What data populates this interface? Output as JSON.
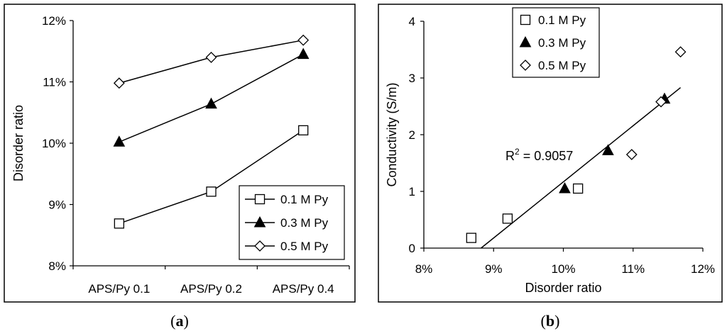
{
  "chart_data": [
    {
      "type": "line",
      "panel_label": "a",
      "ylabel": "Disorder ratio",
      "xlabel": "",
      "categories": [
        "APS/Py 0.1",
        "APS/Py 0.2",
        "APS/Py 0.4"
      ],
      "ylim": [
        8,
        12
      ],
      "yticks": [
        "8%",
        "9%",
        "10%",
        "11%",
        "12%"
      ],
      "legend_position": "bottom-right",
      "grid": false,
      "series": [
        {
          "name": "0.1 M Py",
          "marker": "square-open",
          "values": [
            8.69,
            9.21,
            10.21
          ]
        },
        {
          "name": "0.3 M Py",
          "marker": "triangle-filled",
          "values": [
            10.02,
            10.64,
            11.45
          ]
        },
        {
          "name": "0.5 M Py",
          "marker": "diamond-open",
          "values": [
            10.98,
            11.4,
            11.68
          ]
        }
      ]
    },
    {
      "type": "scatter",
      "panel_label": "b",
      "xlabel": "Disorder ratio",
      "ylabel": "Conductivity (S/m)",
      "xlim": [
        8,
        12
      ],
      "ylim": [
        0,
        4
      ],
      "xticks": [
        "8%",
        "9%",
        "10%",
        "11%",
        "12%"
      ],
      "yticks": [
        "0",
        "1",
        "2",
        "3",
        "4"
      ],
      "legend_position": "top-left",
      "grid": false,
      "annotation": {
        "prefix": "R",
        "superscript": "2",
        "suffix": " = 0.9057"
      },
      "trendline": {
        "x": [
          8.82,
          11.68
        ],
        "y": [
          0,
          2.83
        ]
      },
      "series": [
        {
          "name": "0.1 M Py",
          "marker": "square-open",
          "points": [
            [
              8.68,
              0.18
            ],
            [
              9.2,
              0.52
            ],
            [
              10.21,
              1.05
            ]
          ]
        },
        {
          "name": "0.3 M Py",
          "marker": "triangle-filled",
          "points": [
            [
              10.02,
              1.05
            ],
            [
              10.64,
              1.72
            ],
            [
              11.45,
              2.63
            ]
          ]
        },
        {
          "name": "0.5 M Py",
          "marker": "diamond-open",
          "points": [
            [
              10.98,
              1.65
            ],
            [
              11.4,
              2.58
            ],
            [
              11.68,
              3.46
            ]
          ]
        }
      ]
    }
  ]
}
